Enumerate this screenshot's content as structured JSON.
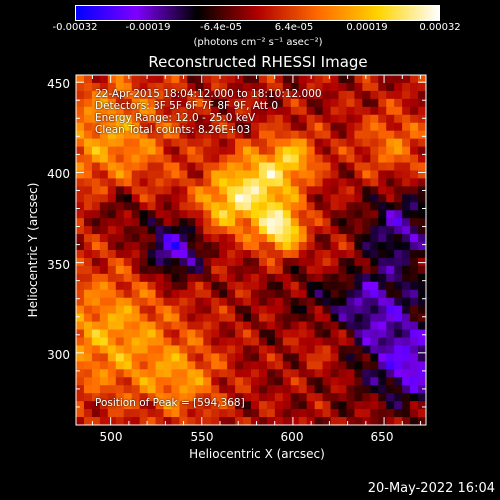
{
  "chart_data": {
    "type": "heatmap",
    "title": "Reconstructed RHESSI Image",
    "xlabel": "Heliocentric X (arcsec)",
    "ylabel": "Heliocentric Y (arcsec)",
    "xlim": [
      481,
      673
    ],
    "ylim": [
      260,
      454
    ],
    "x_ticks": [
      "500",
      "550",
      "600",
      "650"
    ],
    "y_ticks": [
      "300",
      "350",
      "400",
      "450"
    ],
    "colorbar": {
      "range": [
        -0.00032,
        0.00032
      ],
      "ticks": [
        "-0.00032",
        "-0.00019",
        "-6.4e-05",
        "6.4e-05",
        "0.00019",
        "0.00032"
      ],
      "unit": "(photons cm⁻² s⁻¹ asec⁻²)",
      "colors": [
        "#0000ff",
        "#7f00ff",
        "#000000",
        "#b00000",
        "#ff6a00",
        "#ffd400",
        "#ffffff"
      ]
    },
    "peak": {
      "x": 594,
      "y": 368
    },
    "grid": false
  },
  "annotations": {
    "time": "22-Apr-2015 18:04:12.000 to 18:10:12.000",
    "detectors": "Detectors: 3F 5F 6F 7F 8F 9F, Att 0",
    "energy": "Energy Range: 12.0 - 25.0 keV",
    "clean": "Clean     Total counts: 8.26E+03",
    "peak": "Position of Peak = [594,368]"
  },
  "timestamp": "20-May-2022 16:04"
}
